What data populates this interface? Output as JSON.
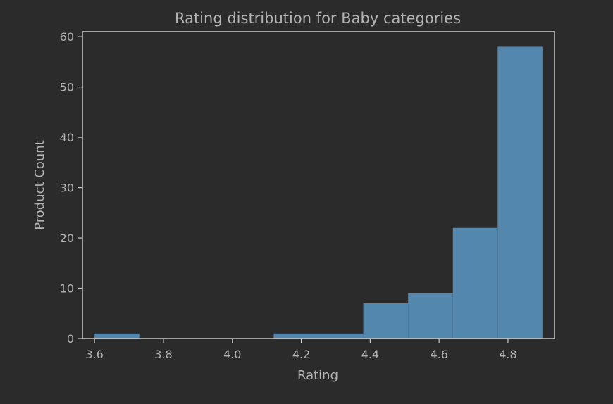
{
  "chart_data": {
    "type": "bar",
    "title": "Rating distribution for Baby categories",
    "xlabel": "Rating",
    "ylabel": "Product Count",
    "xlim": [
      3.565,
      4.935
    ],
    "ylim": [
      0,
      61
    ],
    "xticks": [
      "3.6",
      "3.8",
      "4.0",
      "4.2",
      "4.4",
      "4.6",
      "4.8"
    ],
    "xtick_values": [
      3.6,
      3.8,
      4.0,
      4.2,
      4.4,
      4.6,
      4.8
    ],
    "yticks": [
      "0",
      "10",
      "20",
      "30",
      "40",
      "50",
      "60"
    ],
    "ytick_values": [
      0,
      10,
      20,
      30,
      40,
      50,
      60
    ],
    "bin_edges": [
      3.6,
      3.73,
      3.86,
      3.99,
      4.12,
      4.25,
      4.38,
      4.51,
      4.64,
      4.77,
      4.9
    ],
    "values": [
      1,
      0,
      0,
      0,
      1,
      1,
      7,
      9,
      22,
      58
    ],
    "grid": false,
    "colors": {
      "bar": "#5387ad",
      "background": "#2b2b2b",
      "axes": "#c9c9c9",
      "text": "#b3b3b3"
    }
  }
}
